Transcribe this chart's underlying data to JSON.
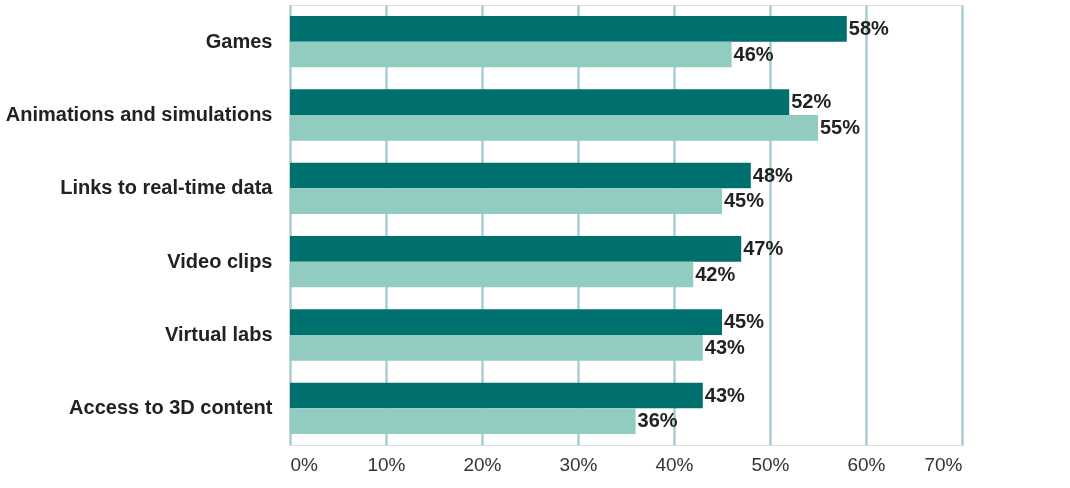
{
  "chart_data": {
    "type": "bar",
    "orientation": "horizontal",
    "categories": [
      "Games",
      "Animations and simulations",
      "Links to real-time data",
      "Video clips",
      "Virtual labs",
      "Access to 3D content"
    ],
    "series": [
      {
        "color": "#00706f",
        "values": [
          58,
          52,
          48,
          47,
          45,
          43
        ],
        "value_labels": [
          "58%",
          "52%",
          "48%",
          "47%",
          "45%",
          "43%"
        ]
      },
      {
        "color": "#92cbbf",
        "values": [
          46,
          55,
          45,
          42,
          43,
          36
        ],
        "value_labels": [
          "46%",
          "55%",
          "45%",
          "42%",
          "43%",
          "36%"
        ]
      }
    ],
    "xlim": [
      0,
      70
    ],
    "xticks": [
      {
        "value": 0,
        "label": "0%"
      },
      {
        "value": 10,
        "label": "10%"
      },
      {
        "value": 20,
        "label": "20%"
      },
      {
        "value": 30,
        "label": "30%"
      },
      {
        "value": 40,
        "label": "40%"
      },
      {
        "value": 50,
        "label": "50%"
      },
      {
        "value": 60,
        "label": "60%"
      },
      {
        "value": 70,
        "label": "70%"
      }
    ],
    "grid": "x"
  }
}
